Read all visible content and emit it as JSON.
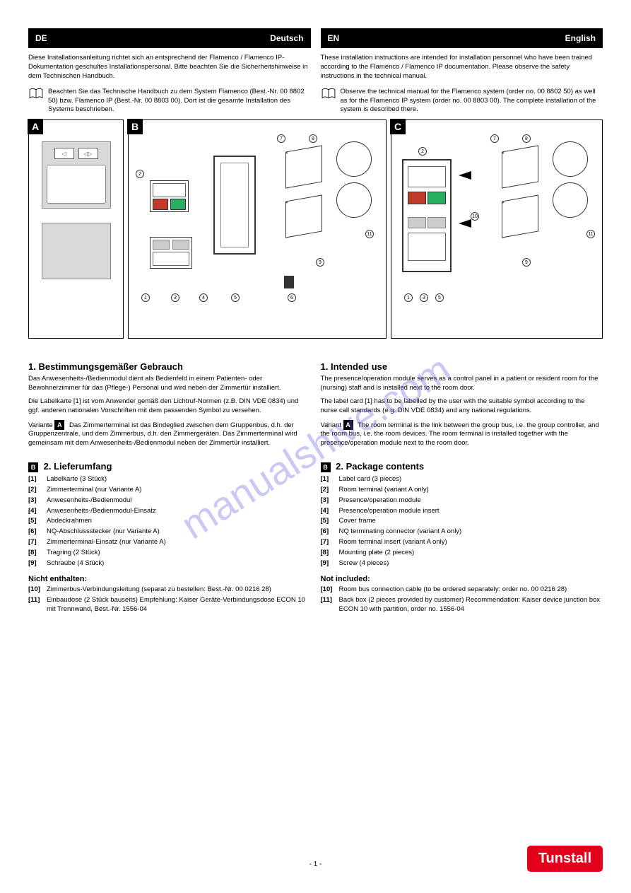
{
  "headers": {
    "left": {
      "lang": "DE",
      "title": "Deutsch"
    },
    "right": {
      "lang": "EN",
      "title": "English"
    }
  },
  "intro": {
    "de": "Diese Installationsanleitung richtet sich an entsprechend der Flamenco / Flamenco IP-Dokumentation geschultes Installationspersonal. Bitte beachten Sie die Sicherheitshinweise in dem Technischen Handbuch.",
    "en": "These installation instructions are intended for installation personnel who have been trained according to the Flamenco / Flamenco IP documentation. Please observe the safety instructions in the technical manual.",
    "de_ref": "Beachten Sie das Technische Handbuch zu dem System Flamenco (Best.-Nr. 00 8802 50) bzw. Flamenco IP (Best.-Nr. 00 8803 00). Dort ist die gesamte Installation des Systems beschrieben.",
    "en_ref": "Observe the technical manual for the Flamenco system (order no. 00 8802 50) as well as for the Flamenco IP system (order no. 00 8803 00). The complete installation of the system is described there."
  },
  "diagram": {
    "labels_A": "A",
    "labels_B": "B",
    "labels_C": "C",
    "parts": {
      "1": "1",
      "2": "2",
      "3": "3",
      "4": "4",
      "5": "5",
      "6": "6",
      "7": "7",
      "8": "8",
      "9": "9",
      "10": "10",
      "11": "11"
    }
  },
  "de": {
    "use_h": "1. Bestimmungsgemäßer Gebrauch",
    "use_p1": "Das Anwesenheits-/Bedienmodul dient als Bedienfeld in einem Patienten- oder Bewohnerzimmer für das (Pflege-) Personal und wird neben der Zimmertür installiert.",
    "use_p2": "Die Labelkarte [1] ist vom Anwender gemäß den Lichtruf-Normen (z.B. DIN VDE 0834) und ggf. anderen nationalen Vorschriften mit dem passenden Symbol zu versehen.",
    "use_p3a": "Variante ",
    "use_p3b": "Das Zimmerterminal ist das Bindeglied zwischen dem Gruppenbus, d.h. der Gruppenzentrale, und dem Zimmerbus, d.h. den Zimmergeräten. Das Zimmerterminal wird gemeinsam mit dem Anwesenheits-/Bedienmodul neben der Zimmertür installiert.",
    "use_p3v": "A",
    "pkg_h": "2. Lieferumfang",
    "pkg": [
      {
        "n": "[1]",
        "t": "Labelkarte (3 Stück)"
      },
      {
        "n": "[2]",
        "t": "Zimmerterminal (nur Variante A)"
      },
      {
        "n": "[3]",
        "t": "Anwesenheits-/Bedienmodul"
      },
      {
        "n": "[4]",
        "t": "Anwesenheits-/Bedienmodul-Einsatz"
      },
      {
        "n": "[5]",
        "t": "Abdeckrahmen"
      },
      {
        "n": "[6]",
        "t": "NQ-Abschlussstecker (nur Variante A)"
      },
      {
        "n": "[7]",
        "t": "Zimmerterminal-Einsatz (nur Variante A)"
      },
      {
        "n": "[8]",
        "t": "Tragring (2 Stück)"
      },
      {
        "n": "[9]",
        "t": "Schraube (4 Stück)"
      }
    ],
    "not_h": "Nicht enthalten:",
    "not": [
      {
        "n": "[10]",
        "t": "Zimmerbus-Verbindungsleitung (separat zu bestellen: Best.-Nr. 00 0216 28)"
      },
      {
        "n": "[11]",
        "t": "Einbaudose (2 Stück bauseits) Empfehlung: Kaiser Geräte-Verbindungsdose ECON 10 mit Trennwand, Best.-Nr. 1556-04"
      }
    ]
  },
  "en": {
    "use_h": "1. Intended use",
    "use_p1": "The presence/operation module serves as a control panel in a patient or resident room for the (nursing) staff and is installed next to the room door.",
    "use_p2": "The label card [1] has to be labelled by the user with the suitable symbol according to the nurse call standards (e.g. DIN VDE 0834) and any national regulations.",
    "use_p3a": "Variant ",
    "use_p3b": "The room terminal is the link between the group bus, i.e. the group controller, and the room bus, i.e. the room devices. The room terminal is installed together with the presence/operation module next to the room door.",
    "use_p3v": "A",
    "pkg_h": "2. Package contents",
    "pkg": [
      {
        "n": "[1]",
        "t": "Label card (3 pieces)"
      },
      {
        "n": "[2]",
        "t": "Room terminal (variant A only)"
      },
      {
        "n": "[3]",
        "t": "Presence/operation module"
      },
      {
        "n": "[4]",
        "t": "Presence/operation module insert"
      },
      {
        "n": "[5]",
        "t": "Cover frame"
      },
      {
        "n": "[6]",
        "t": "NQ terminating connector (variant A only)"
      },
      {
        "n": "[7]",
        "t": "Room terminal insert (variant A only)"
      },
      {
        "n": "[8]",
        "t": "Mounting plate (2 pieces)"
      },
      {
        "n": "[9]",
        "t": "Screw (4 pieces)"
      }
    ],
    "not_h": "Not included:",
    "not": [
      {
        "n": "[10]",
        "t": "Room bus connection cable (to be ordered separately: order no. 00 0216 28)"
      },
      {
        "n": "[11]",
        "t": "Back box (2 pieces provided by customer) Recommendation: Kaiser device junction box ECON 10 with partition, order no. 1556-04"
      }
    ]
  },
  "watermark": "manualshive.com",
  "logo": "Tunstall",
  "page": "- 1 -"
}
